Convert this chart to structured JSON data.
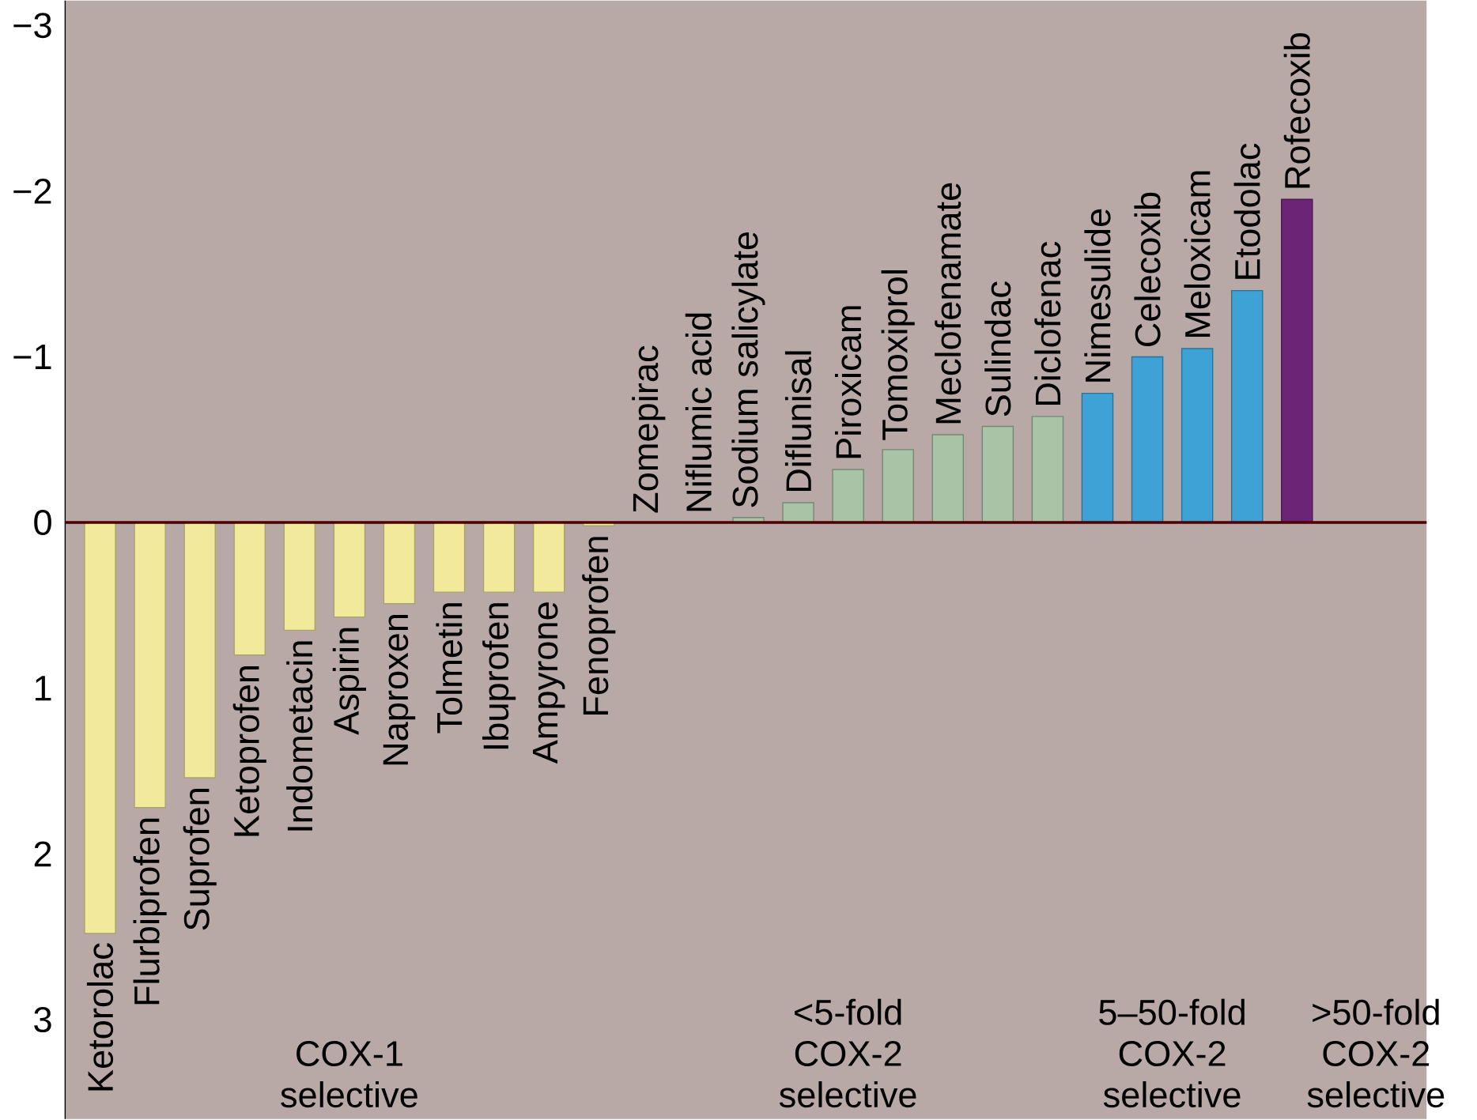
{
  "chart_data": {
    "type": "bar",
    "categories": [
      "Ketorolac",
      "Flurbiprofen",
      "Suprofen",
      "Ketoprofen",
      "Indometacin",
      "Aspirin",
      "Naproxen",
      "Tolmetin",
      "Ibuprofen",
      "Ampyrone",
      "Fenoprofen",
      "Zomepirac",
      "Niflumic acid",
      "Sodium salicylate",
      "Diflunisal",
      "Piroxicam",
      "Tomoxiprol",
      "Meclofenamate",
      "Sulindac",
      "Diclofenac",
      "Nimesulide",
      "Celecoxib",
      "Meloxicam",
      "Etodolac",
      "Rofecoxib"
    ],
    "values": [
      2.48,
      1.72,
      1.54,
      0.8,
      0.65,
      0.57,
      0.49,
      0.42,
      0.42,
      0.42,
      0.02,
      0,
      null,
      -0.03,
      -0.12,
      -0.32,
      -0.44,
      -0.53,
      -0.58,
      -0.64,
      -0.78,
      -1.0,
      -1.05,
      -1.4,
      -1.95
    ],
    "colors": [
      "#f3e99a",
      "#f3e99a",
      "#f3e99a",
      "#f3e99a",
      "#f3e99a",
      "#f3e99a",
      "#f3e99a",
      "#f3e99a",
      "#f3e99a",
      "#f3e99a",
      "#f3e99a",
      "#a9c3a6",
      "#a9c3a6",
      "#a9c3a6",
      "#a9c3a6",
      "#a9c3a6",
      "#a9c3a6",
      "#a9c3a6",
      "#a9c3a6",
      "#a9c3a6",
      "#3fa2d6",
      "#3fa2d6",
      "#3fa2d6",
      "#3fa2d6",
      "#6c2476"
    ],
    "ylim": [
      3.6,
      -3.15
    ],
    "yticks": [
      {
        "value": -3,
        "label": "−3"
      },
      {
        "value": -2,
        "label": "−2"
      },
      {
        "value": -1,
        "label": "−1"
      },
      0,
      1,
      2,
      3
    ],
    "annotations": [
      "COX-1 selective",
      "<5-fold COX-2 selective",
      "5–50-fold COX-2 selective",
      ">50-fold COX-2 selective"
    ]
  }
}
